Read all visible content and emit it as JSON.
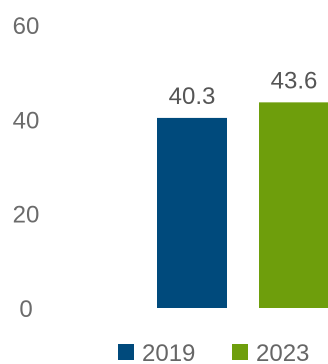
{
  "chart_data": {
    "type": "bar",
    "title": "",
    "xlabel": "",
    "ylabel": "",
    "ylim": [
      0,
      60
    ],
    "yticks": [
      0,
      20,
      40,
      60
    ],
    "grid": false,
    "legend_position": "bottom",
    "categories": [
      ""
    ],
    "series": [
      {
        "name": "2019",
        "values": [
          40.3
        ],
        "color": "#004a7c"
      },
      {
        "name": "2023",
        "values": [
          43.6
        ],
        "color": "#6e9e0c"
      }
    ]
  }
}
